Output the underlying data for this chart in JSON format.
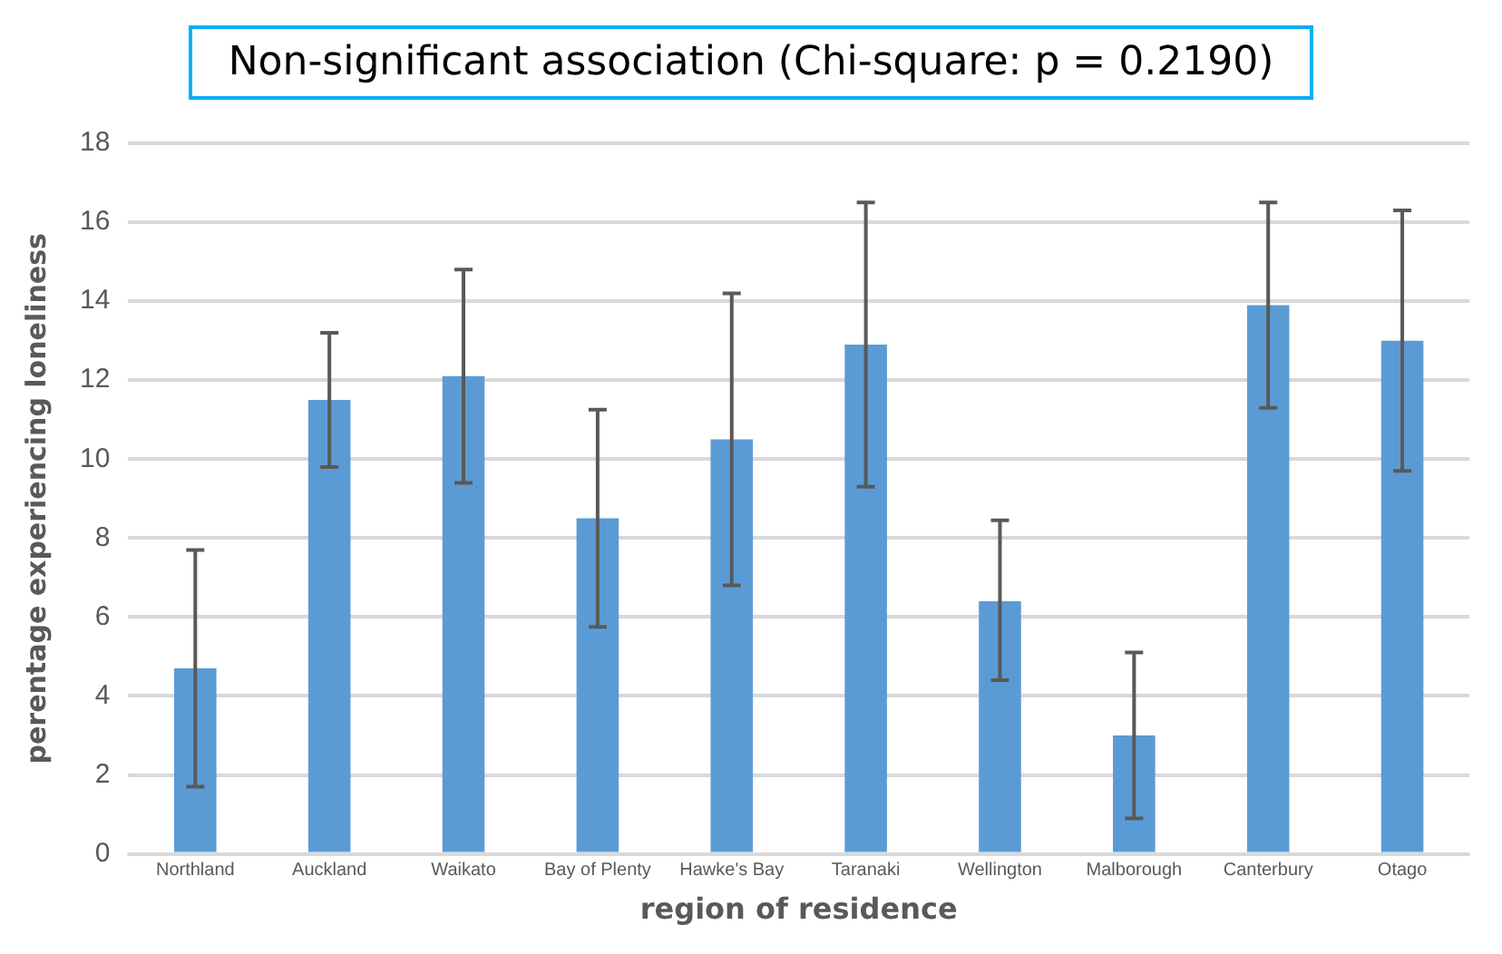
{
  "chart_data": {
    "type": "bar",
    "xlabel": "region of residence",
    "ylabel": "perentage experiencing loneliness",
    "annotations": [
      "Non-significant association (Chi-square: p = 0.2190)"
    ],
    "categories": [
      "Northland",
      "Auckland",
      "Waikato",
      "Bay of Plenty",
      "Hawke's Bay",
      "Taranaki",
      "Wellington",
      "Malborough",
      "Canterbury",
      "Otago"
    ],
    "values": [
      4.7,
      11.5,
      12.1,
      8.5,
      10.5,
      12.9,
      6.4,
      3.0,
      13.9,
      13.0
    ],
    "errors": [
      [
        1.7,
        7.7
      ],
      [
        9.8,
        13.2
      ],
      [
        9.4,
        14.8
      ],
      [
        5.75,
        11.25
      ],
      [
        6.8,
        14.2
      ],
      [
        9.3,
        16.5
      ],
      [
        4.4,
        8.45
      ],
      [
        0.9,
        5.1
      ],
      [
        11.3,
        16.5
      ],
      [
        9.7,
        16.3
      ]
    ],
    "color": "#5b9bd5",
    "ylim": [
      0,
      18
    ],
    "yticks": [
      0,
      2,
      4,
      6,
      8,
      10,
      12,
      14,
      16,
      18
    ],
    "grid": "y",
    "legend": false
  }
}
